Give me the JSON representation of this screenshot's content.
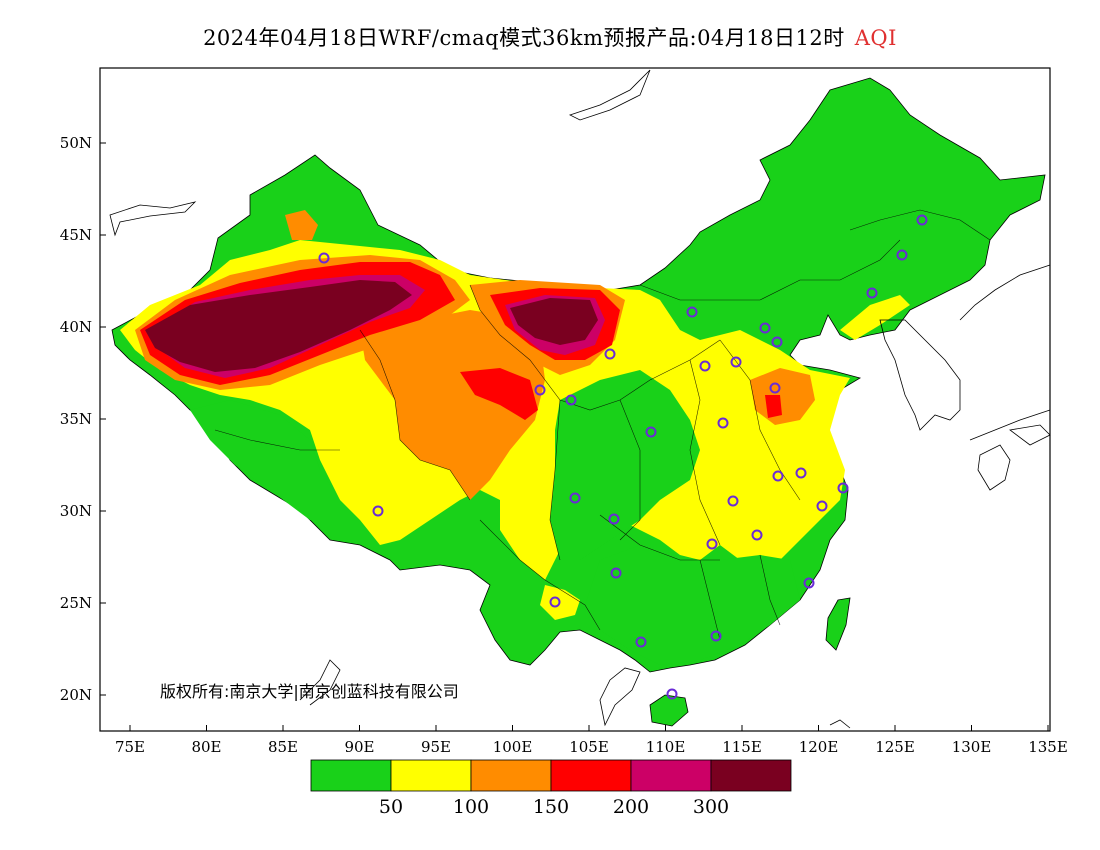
{
  "title": {
    "main": "2024年04月18日WRF/cmaq模式36km预报产品:04月18日12时",
    "variable": "AQI"
  },
  "copyright": "版权所有:南京大学|南京创蓝科技有限公司",
  "axes": {
    "lon_ticks": [
      "75E",
      "80E",
      "85E",
      "90E",
      "95E",
      "100E",
      "105E",
      "110E",
      "115E",
      "120E",
      "125E",
      "130E",
      "135E"
    ],
    "lat_ticks": [
      "50N",
      "45N",
      "40N",
      "35N",
      "30N",
      "25N",
      "20N"
    ]
  },
  "legend": {
    "breaks": [
      "50",
      "100",
      "150",
      "200",
      "300"
    ],
    "colors": [
      "#19d119",
      "#ffff00",
      "#ff8c00",
      "#ff0000",
      "#cc0066",
      "#7a0020"
    ]
  },
  "map_colors": {
    "land_good": "#19d119",
    "moderate": "#ffff00",
    "usg": "#ff8c00",
    "unhealthy": "#ff0000",
    "very_unhealthy": "#cc0066",
    "hazardous": "#7a0020"
  }
}
